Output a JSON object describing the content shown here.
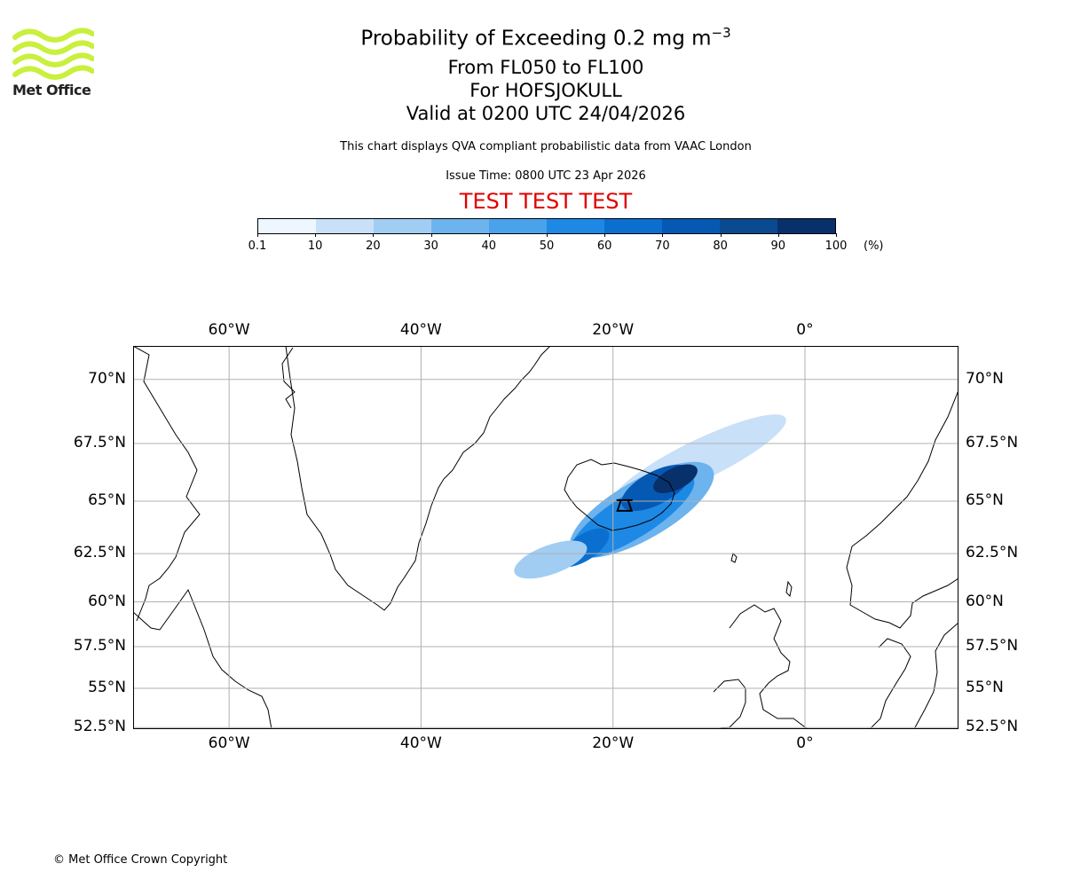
{
  "logo": {
    "icon": "met-office-wave-logo-icon",
    "text": "Met Office",
    "color": "#c8f03c"
  },
  "header": {
    "title_prefix": "Probability of Exceeding 0.2 mg m",
    "title_exponent": "−3",
    "levels": "From FL050 to FL100",
    "volcano": "For HOFSJOKULL",
    "valid": "Valid at 0200 UTC 24/04/2026",
    "description": "This chart displays QVA compliant probabilistic data from VAAC London",
    "issue": "Issue Time: 0800 UTC 23 Apr 2026",
    "test_banner": "TEST TEST TEST",
    "test_color": "#e00000"
  },
  "colorbar": {
    "colors": [
      "#eef6ff",
      "#c8e0f8",
      "#a2cdf3",
      "#6db3ee",
      "#4aa2ec",
      "#1e88e5",
      "#0b6fcf",
      "#0659b3",
      "#0a4a91",
      "#08306b"
    ],
    "ticks": [
      "0.1",
      "10",
      "20",
      "30",
      "40",
      "50",
      "60",
      "70",
      "80",
      "90",
      "100"
    ],
    "unit": "(%)"
  },
  "map": {
    "lon_range": [
      -70,
      16
    ],
    "lat_range": [
      52.4,
      71.2
    ],
    "lon_ticks": [
      {
        "value": -60,
        "label": "60°W"
      },
      {
        "value": -40,
        "label": "40°W"
      },
      {
        "value": -20,
        "label": "20°W"
      },
      {
        "value": 0,
        "label": "0°"
      }
    ],
    "lat_ticks": [
      {
        "value": 70,
        "label": "70°N"
      },
      {
        "value": 67.5,
        "label": "67.5°N"
      },
      {
        "value": 65,
        "label": "65°N"
      },
      {
        "value": 62.5,
        "label": "62.5°N"
      },
      {
        "value": 60,
        "label": "60°N"
      },
      {
        "value": 57.5,
        "label": "57.5°N"
      },
      {
        "value": 55,
        "label": "55°N"
      },
      {
        "value": 52.5,
        "label": "52.5°N"
      }
    ],
    "volcano": {
      "name": "Hofsjokull",
      "lon": -18.8,
      "lat": 64.8,
      "icon": "volcano-icon"
    },
    "plume": [
      {
        "lon": -11.0,
        "lat": 66.8,
        "rx": 10,
        "ry": 1.1,
        "rot": -26,
        "probability": 15
      },
      {
        "lon": -17.0,
        "lat": 64.6,
        "rx": 8.5,
        "ry": 1.6,
        "rot": -30,
        "probability": 30
      },
      {
        "lon": -18.0,
        "lat": 64.3,
        "rx": 7.5,
        "ry": 1.2,
        "rot": -32,
        "probability": 50
      },
      {
        "lon": -15.5,
        "lat": 65.6,
        "rx": 4.0,
        "ry": 0.9,
        "rot": -28,
        "probability": 75
      },
      {
        "lon": -13.5,
        "lat": 66.0,
        "rx": 2.5,
        "ry": 0.6,
        "rot": -26,
        "probability": 92
      },
      {
        "lon": -23.0,
        "lat": 62.8,
        "rx": 3.0,
        "ry": 0.7,
        "rot": -34,
        "probability": 65
      },
      {
        "lon": -26.5,
        "lat": 62.2,
        "rx": 4.0,
        "ry": 0.8,
        "rot": -20,
        "probability": 20
      }
    ]
  },
  "footer": {
    "copyright": "© Met Office Crown Copyright"
  }
}
